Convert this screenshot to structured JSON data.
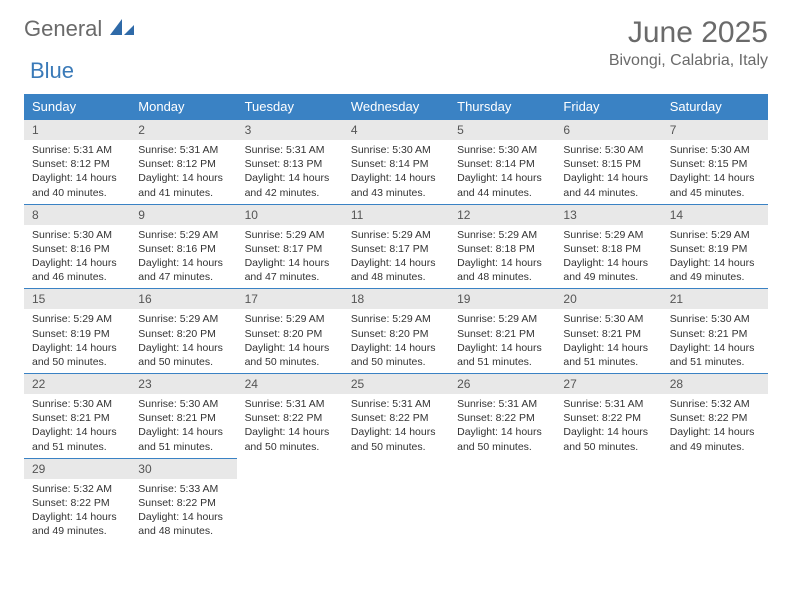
{
  "logo": {
    "text1": "General",
    "text2": "Blue"
  },
  "title": "June 2025",
  "location": "Bivongi, Calabria, Italy",
  "headers": [
    "Sunday",
    "Monday",
    "Tuesday",
    "Wednesday",
    "Thursday",
    "Friday",
    "Saturday"
  ],
  "colors": {
    "header_bg": "#3a82c4",
    "header_text": "#ffffff",
    "daynum_bg": "#e8e8e8",
    "border": "#3a82c4",
    "logo_gray": "#6a6a6a",
    "logo_blue": "#3a7ab8"
  },
  "weeks": [
    [
      {
        "n": "1",
        "sr": "5:31 AM",
        "ss": "8:12 PM",
        "dl": "14 hours and 40 minutes."
      },
      {
        "n": "2",
        "sr": "5:31 AM",
        "ss": "8:12 PM",
        "dl": "14 hours and 41 minutes."
      },
      {
        "n": "3",
        "sr": "5:31 AM",
        "ss": "8:13 PM",
        "dl": "14 hours and 42 minutes."
      },
      {
        "n": "4",
        "sr": "5:30 AM",
        "ss": "8:14 PM",
        "dl": "14 hours and 43 minutes."
      },
      {
        "n": "5",
        "sr": "5:30 AM",
        "ss": "8:14 PM",
        "dl": "14 hours and 44 minutes."
      },
      {
        "n": "6",
        "sr": "5:30 AM",
        "ss": "8:15 PM",
        "dl": "14 hours and 44 minutes."
      },
      {
        "n": "7",
        "sr": "5:30 AM",
        "ss": "8:15 PM",
        "dl": "14 hours and 45 minutes."
      }
    ],
    [
      {
        "n": "8",
        "sr": "5:30 AM",
        "ss": "8:16 PM",
        "dl": "14 hours and 46 minutes."
      },
      {
        "n": "9",
        "sr": "5:29 AM",
        "ss": "8:16 PM",
        "dl": "14 hours and 47 minutes."
      },
      {
        "n": "10",
        "sr": "5:29 AM",
        "ss": "8:17 PM",
        "dl": "14 hours and 47 minutes."
      },
      {
        "n": "11",
        "sr": "5:29 AM",
        "ss": "8:17 PM",
        "dl": "14 hours and 48 minutes."
      },
      {
        "n": "12",
        "sr": "5:29 AM",
        "ss": "8:18 PM",
        "dl": "14 hours and 48 minutes."
      },
      {
        "n": "13",
        "sr": "5:29 AM",
        "ss": "8:18 PM",
        "dl": "14 hours and 49 minutes."
      },
      {
        "n": "14",
        "sr": "5:29 AM",
        "ss": "8:19 PM",
        "dl": "14 hours and 49 minutes."
      }
    ],
    [
      {
        "n": "15",
        "sr": "5:29 AM",
        "ss": "8:19 PM",
        "dl": "14 hours and 50 minutes."
      },
      {
        "n": "16",
        "sr": "5:29 AM",
        "ss": "8:20 PM",
        "dl": "14 hours and 50 minutes."
      },
      {
        "n": "17",
        "sr": "5:29 AM",
        "ss": "8:20 PM",
        "dl": "14 hours and 50 minutes."
      },
      {
        "n": "18",
        "sr": "5:29 AM",
        "ss": "8:20 PM",
        "dl": "14 hours and 50 minutes."
      },
      {
        "n": "19",
        "sr": "5:29 AM",
        "ss": "8:21 PM",
        "dl": "14 hours and 51 minutes."
      },
      {
        "n": "20",
        "sr": "5:30 AM",
        "ss": "8:21 PM",
        "dl": "14 hours and 51 minutes."
      },
      {
        "n": "21",
        "sr": "5:30 AM",
        "ss": "8:21 PM",
        "dl": "14 hours and 51 minutes."
      }
    ],
    [
      {
        "n": "22",
        "sr": "5:30 AM",
        "ss": "8:21 PM",
        "dl": "14 hours and 51 minutes."
      },
      {
        "n": "23",
        "sr": "5:30 AM",
        "ss": "8:21 PM",
        "dl": "14 hours and 51 minutes."
      },
      {
        "n": "24",
        "sr": "5:31 AM",
        "ss": "8:22 PM",
        "dl": "14 hours and 50 minutes."
      },
      {
        "n": "25",
        "sr": "5:31 AM",
        "ss": "8:22 PM",
        "dl": "14 hours and 50 minutes."
      },
      {
        "n": "26",
        "sr": "5:31 AM",
        "ss": "8:22 PM",
        "dl": "14 hours and 50 minutes."
      },
      {
        "n": "27",
        "sr": "5:31 AM",
        "ss": "8:22 PM",
        "dl": "14 hours and 50 minutes."
      },
      {
        "n": "28",
        "sr": "5:32 AM",
        "ss": "8:22 PM",
        "dl": "14 hours and 49 minutes."
      }
    ],
    [
      {
        "n": "29",
        "sr": "5:32 AM",
        "ss": "8:22 PM",
        "dl": "14 hours and 49 minutes."
      },
      {
        "n": "30",
        "sr": "5:33 AM",
        "ss": "8:22 PM",
        "dl": "14 hours and 48 minutes."
      },
      null,
      null,
      null,
      null,
      null
    ]
  ],
  "labels": {
    "sunrise": "Sunrise:",
    "sunset": "Sunset:",
    "daylight": "Daylight:"
  }
}
